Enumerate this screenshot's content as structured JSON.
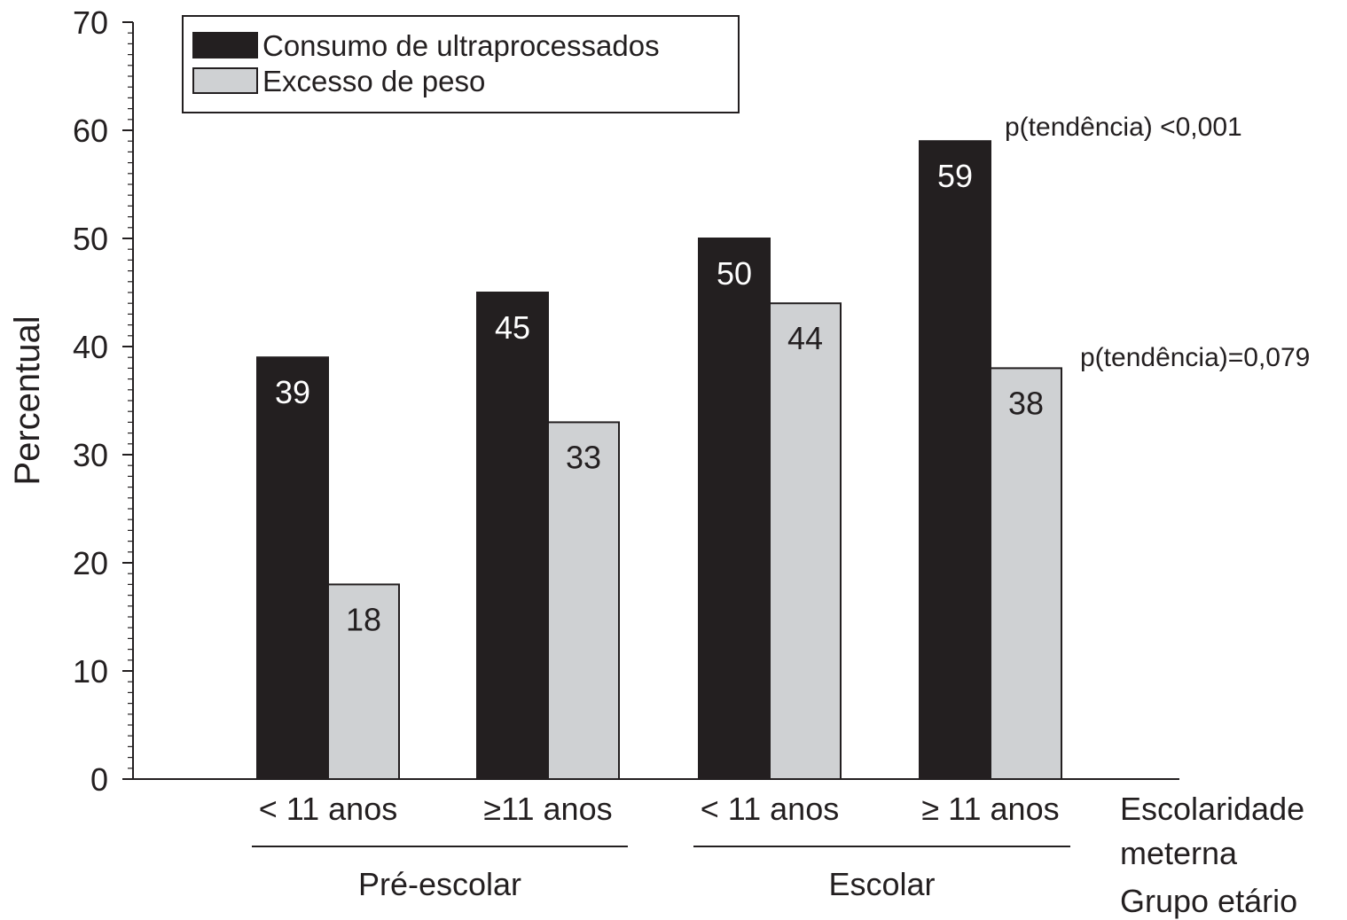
{
  "chart_data": {
    "type": "bar",
    "ylabel": "Percentual",
    "ylim": [
      0,
      70
    ],
    "yticks": [
      0,
      10,
      20,
      30,
      40,
      50,
      60,
      70
    ],
    "categories": [
      "< 11 anos",
      "≥11 anos",
      "< 11 anos",
      "≥ 11 anos"
    ],
    "groups": [
      {
        "label": "Pré-escolar",
        "categories": [
          0,
          1
        ]
      },
      {
        "label": "Escolar",
        "categories": [
          2,
          3
        ]
      }
    ],
    "series": [
      {
        "name": "Consumo de ultraprocessados",
        "color": "#231f20",
        "label_color": "#ffffff",
        "values": [
          39,
          45,
          50,
          59
        ]
      },
      {
        "name": "Excesso de peso",
        "color": "#cfd1d3",
        "label_color": "#231f20",
        "values": [
          18,
          33,
          44,
          38
        ]
      }
    ],
    "axis_row_labels": {
      "category_axis": "Escolaridade meterna",
      "group_axis": "Grupo etário"
    },
    "annotations": [
      {
        "series": 0,
        "text": "p(tendência) <0,001"
      },
      {
        "series": 1,
        "text": "p(tendência)=0,079"
      }
    ],
    "legend_position": "top-left",
    "grid": false
  }
}
